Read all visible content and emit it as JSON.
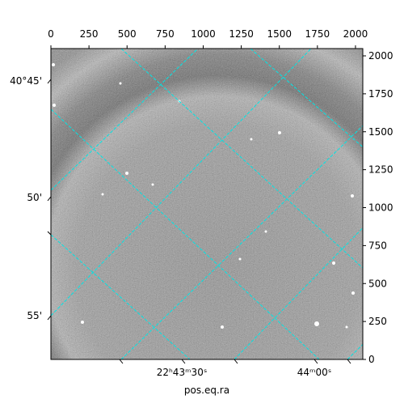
{
  "chart_data": {
    "type": "image",
    "xlabel": "pos.eq.ra",
    "xlim": [
      0,
      2048
    ],
    "xticks": [
      0,
      250,
      500,
      750,
      1000,
      1250,
      1500,
      1750,
      2000
    ],
    "ylim": [
      0,
      2048
    ],
    "yticks": [
      0,
      250,
      500,
      750,
      1000,
      1250,
      1500,
      1750,
      2000
    ],
    "ra_ticks": [
      "22ʰ43ᵐ30ˢ",
      "44ᵐ00ˢ"
    ],
    "dec_ticks": [
      "40°45'",
      "50'",
      "55'"
    ],
    "grid_color": "#00e5e5"
  }
}
